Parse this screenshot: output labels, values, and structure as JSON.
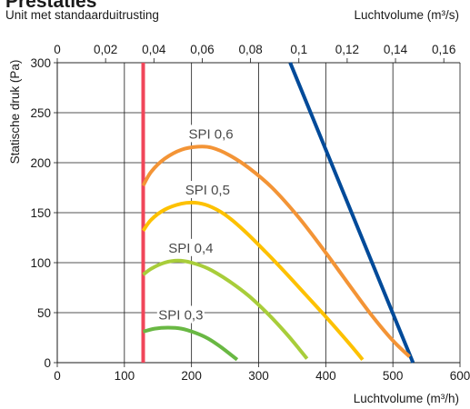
{
  "chart_data": {
    "type": "line",
    "title": "Prestaties",
    "subtitle": "Unit met standaarduitrusting",
    "xlabel": "Luchtvolume (m³/h)",
    "x2label": "Luchtvolume  (m³/s)",
    "ylabel": "Statische druk (Pa)",
    "xlim": [
      0,
      600
    ],
    "ylim": [
      0,
      300
    ],
    "x2lim": [
      0,
      0.1667
    ],
    "xticks": [
      "0",
      "100",
      "200",
      "300",
      "400",
      "500",
      "600"
    ],
    "x2ticks": [
      "0",
      "0,02",
      "0,04",
      "0,06",
      "0,08",
      "0,1",
      "0,12",
      "0,14",
      "0,16"
    ],
    "x2tick_values": [
      0,
      0.02,
      0.04,
      0.06,
      0.08,
      0.1,
      0.12,
      0.14,
      0.16
    ],
    "yticks": [
      "0",
      "50",
      "100",
      "150",
      "200",
      "250",
      "300"
    ],
    "grid": true,
    "series": [
      {
        "label": "",
        "color": "#f0465a",
        "x": [
          128,
          128
        ],
        "y": [
          0,
          300
        ]
      },
      {
        "label": "",
        "color": "#004a99",
        "x": [
          347,
          530
        ],
        "y": [
          300,
          0
        ]
      },
      {
        "label": "SPI 0,6",
        "color": "#f39436",
        "x": [
          128,
          140,
          160,
          185,
          210,
          230,
          255,
          285,
          320,
          360,
          400,
          440,
          470,
          500,
          525
        ],
        "y": [
          177,
          191,
          204,
          213,
          216,
          215,
          208,
          195,
          175,
          145,
          110,
          73,
          46,
          22,
          6
        ]
      },
      {
        "label": "SPI 0,5",
        "color": "#fdc100",
        "x": [
          128,
          140,
          160,
          185,
          205,
          225,
          250,
          280,
          310,
          340,
          370,
          400,
          430,
          455
        ],
        "y": [
          132,
          143,
          153,
          159,
          160,
          157,
          148,
          131,
          111,
          90,
          68,
          46,
          23,
          3
        ]
      },
      {
        "label": "SPI 0,4",
        "color": "#a8cd3a",
        "x": [
          128,
          140,
          160,
          180,
          200,
          225,
          255,
          285,
          315,
          340,
          360,
          372
        ],
        "y": [
          88,
          94,
          100,
          102,
          100,
          94,
          82,
          67,
          48,
          30,
          14,
          4
        ]
      },
      {
        "label": "SPI 0,3",
        "color": "#69b843",
        "x": [
          128,
          145,
          165,
          185,
          205,
          225,
          245,
          268
        ],
        "y": [
          31,
          34,
          35,
          34,
          30,
          24,
          15,
          3
        ]
      }
    ]
  }
}
